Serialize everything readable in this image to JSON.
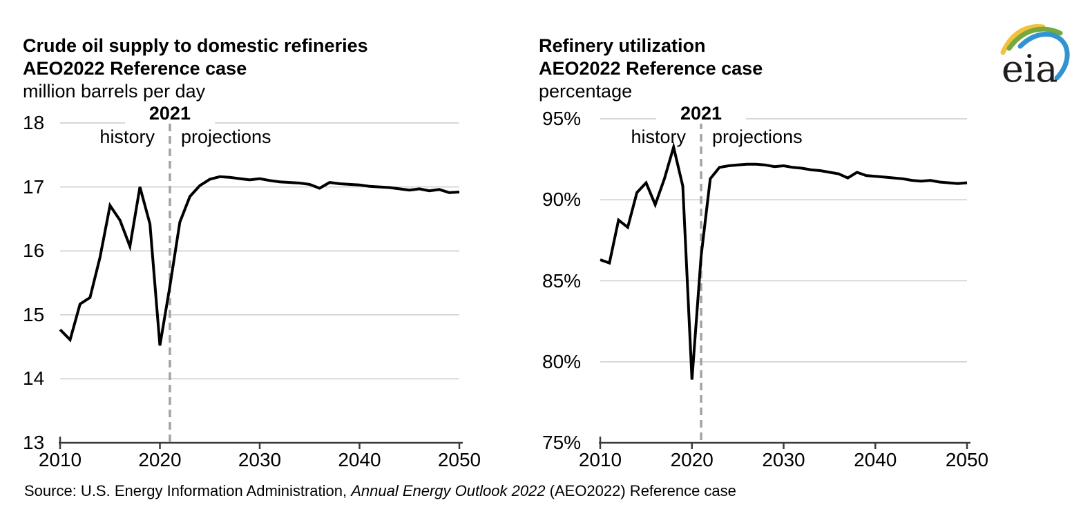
{
  "logo": {
    "text": "eia",
    "colors": {
      "gold": "#f0c33c",
      "green": "#76a83d",
      "blue": "#3193cf"
    }
  },
  "annotations": {
    "divider_label": "2021",
    "history": "history",
    "projections": "projections"
  },
  "source_note": {
    "prefix": "Source: U.S. Energy Information Administration, ",
    "italic_part": "Annual Energy Outlook 2022",
    "suffix": " (AEO2022) Reference case"
  },
  "colors": {
    "line": "#000000",
    "grid": "#cccccc",
    "axis": "#3a3a3a",
    "divider": "#a3a3a3"
  },
  "chart_data": [
    {
      "type": "line",
      "title": "Crude oil supply to domestic refineries",
      "subtitle": "AEO2022 Reference case",
      "unit_label": "million barrels per day",
      "divider_year": 2021,
      "grid": "horizontal",
      "legend_position": "none",
      "ylim": [
        13,
        18
      ],
      "ytick_values": [
        18,
        17,
        16,
        15,
        14,
        13
      ],
      "ytick_labels": [
        "18",
        "17",
        "16",
        "15",
        "14",
        "13"
      ],
      "xtick_values": [
        2010,
        2020,
        2030,
        2040,
        2050
      ],
      "xtick_labels": [
        "2010",
        "2020",
        "2030",
        "2040",
        "2050"
      ],
      "x": [
        2010,
        2011,
        2012,
        2013,
        2014,
        2015,
        2016,
        2017,
        2018,
        2019,
        2020,
        2021,
        2022,
        2023,
        2024,
        2025,
        2026,
        2027,
        2028,
        2029,
        2030,
        2031,
        2032,
        2033,
        2034,
        2035,
        2036,
        2037,
        2038,
        2039,
        2040,
        2041,
        2042,
        2043,
        2044,
        2045,
        2046,
        2047,
        2048,
        2049,
        2050
      ],
      "values": [
        14.77,
        14.61,
        15.17,
        15.27,
        15.9,
        16.71,
        16.48,
        16.07,
        17.0,
        16.42,
        14.52,
        15.45,
        16.45,
        16.85,
        17.02,
        17.12,
        17.16,
        17.15,
        17.13,
        17.11,
        17.13,
        17.1,
        17.08,
        17.07,
        17.06,
        17.04,
        16.98,
        17.07,
        17.05,
        17.04,
        17.03,
        17.01,
        17.0,
        16.99,
        16.97,
        16.95,
        16.97,
        16.94,
        16.96,
        16.91,
        16.92
      ]
    },
    {
      "type": "line",
      "title": "Refinery utilization",
      "subtitle": "AEO2022 Reference case",
      "unit_label": "percentage",
      "divider_year": 2021,
      "grid": "horizontal",
      "legend_position": "none",
      "ylim": [
        75,
        95
      ],
      "ytick_values": [
        95,
        90,
        85,
        80,
        75
      ],
      "ytick_labels": [
        "95%",
        "90%",
        "85%",
        "80%",
        "75%"
      ],
      "xtick_values": [
        2010,
        2020,
        2030,
        2040,
        2050
      ],
      "xtick_labels": [
        "2010",
        "2020",
        "2030",
        "2040",
        "2050"
      ],
      "x": [
        2010,
        2011,
        2012,
        2013,
        2014,
        2015,
        2016,
        2017,
        2018,
        2019,
        2020,
        2021,
        2022,
        2023,
        2024,
        2025,
        2026,
        2027,
        2028,
        2029,
        2030,
        2031,
        2032,
        2033,
        2034,
        2035,
        2036,
        2037,
        2038,
        2039,
        2040,
        2041,
        2042,
        2043,
        2044,
        2045,
        2046,
        2047,
        2048,
        2049,
        2050
      ],
      "values": [
        86.3,
        86.1,
        88.75,
        88.3,
        90.45,
        91.05,
        89.7,
        91.3,
        93.25,
        90.85,
        78.9,
        86.5,
        91.3,
        92.0,
        92.1,
        92.15,
        92.2,
        92.2,
        92.15,
        92.05,
        92.1,
        92.0,
        91.95,
        91.85,
        91.8,
        91.7,
        91.6,
        91.35,
        91.7,
        91.5,
        91.45,
        91.4,
        91.35,
        91.3,
        91.2,
        91.15,
        91.2,
        91.1,
        91.05,
        91.0,
        91.05
      ]
    }
  ]
}
